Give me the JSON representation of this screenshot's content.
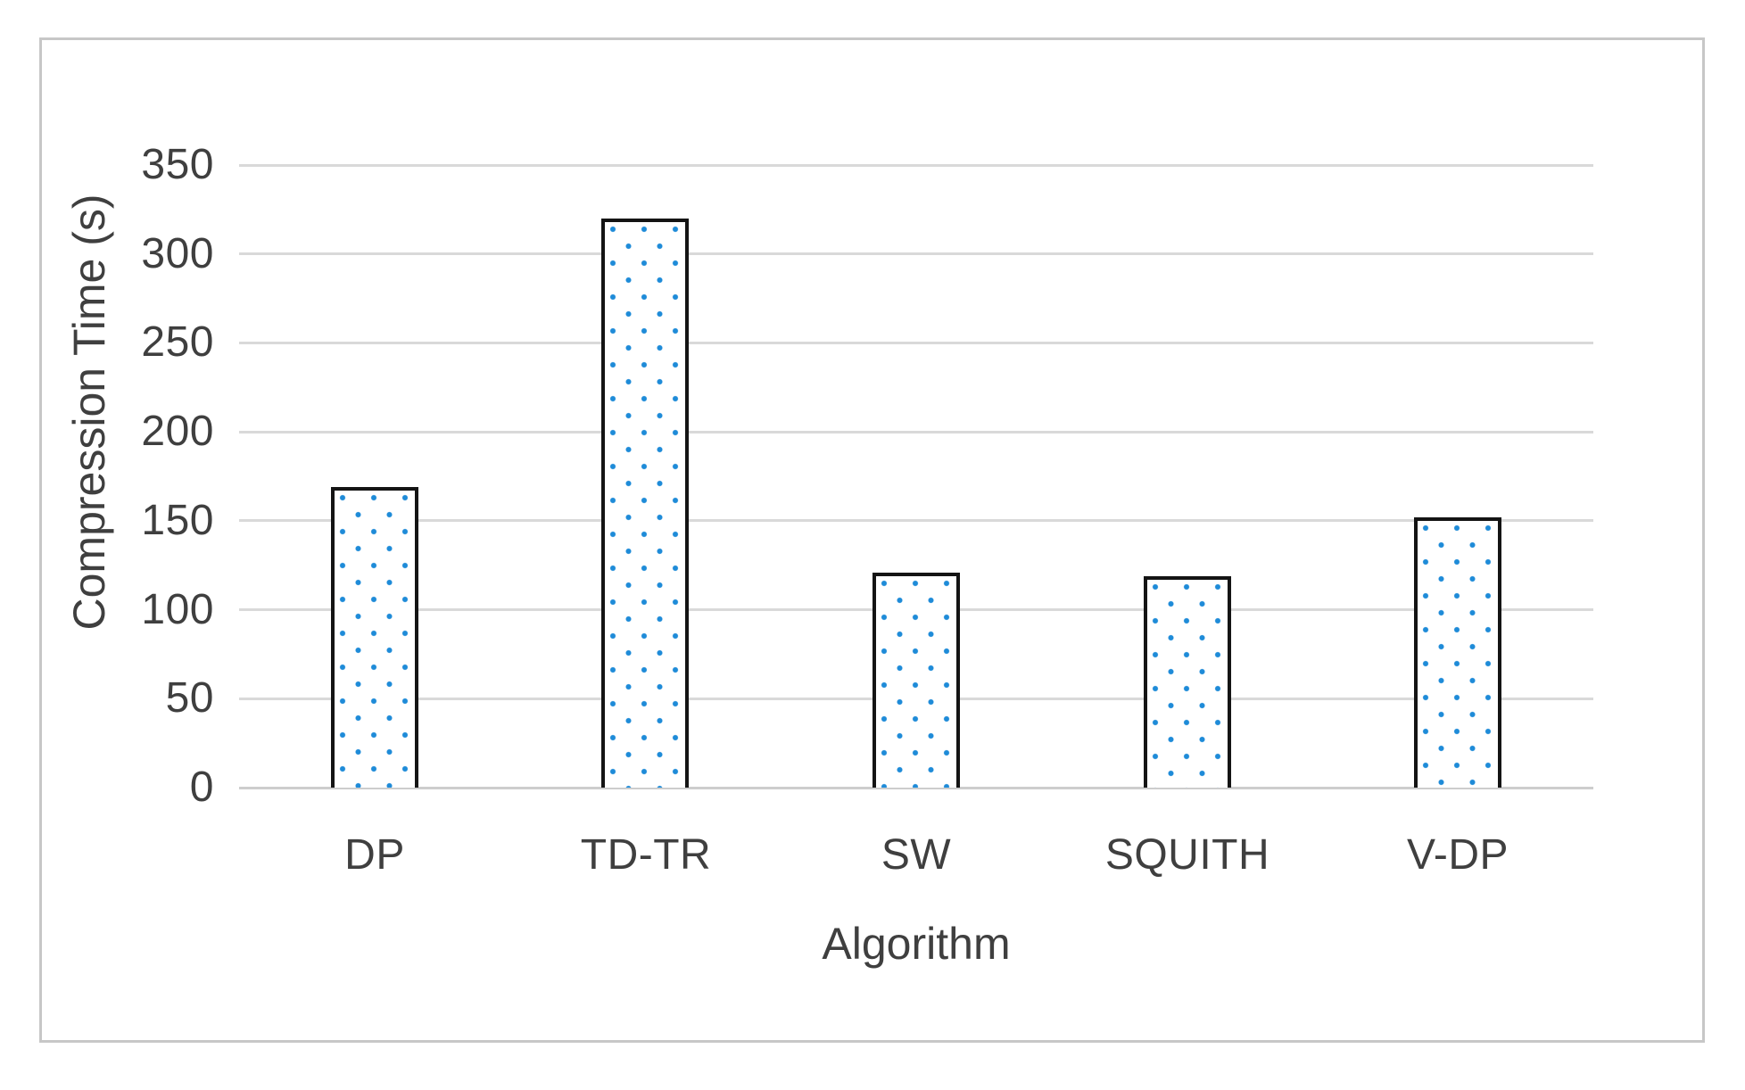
{
  "chart_data": {
    "type": "bar",
    "title": "",
    "categories": [
      "DP",
      "TD-TR",
      "SW",
      "SQUITH",
      "V-DP"
    ],
    "values": [
      169,
      320,
      121,
      119,
      152
    ],
    "xlabel": "Algorithm",
    "ylabel": "Compression Time (s)",
    "ylim": [
      0,
      350
    ],
    "yticks": [
      0,
      50,
      100,
      150,
      200,
      250,
      300,
      350
    ],
    "grid": true,
    "legend": false,
    "bar_style": "white fill with blue dot pattern, black outline",
    "colors": {
      "dot": "#1e8bd8",
      "bar_border": "#141414",
      "gridline": "#d9d9d9",
      "axis_line": "#cdcdcd",
      "text": "#3f3f3f",
      "frame_border": "#c7c7c7",
      "background": "#ffffff"
    }
  }
}
